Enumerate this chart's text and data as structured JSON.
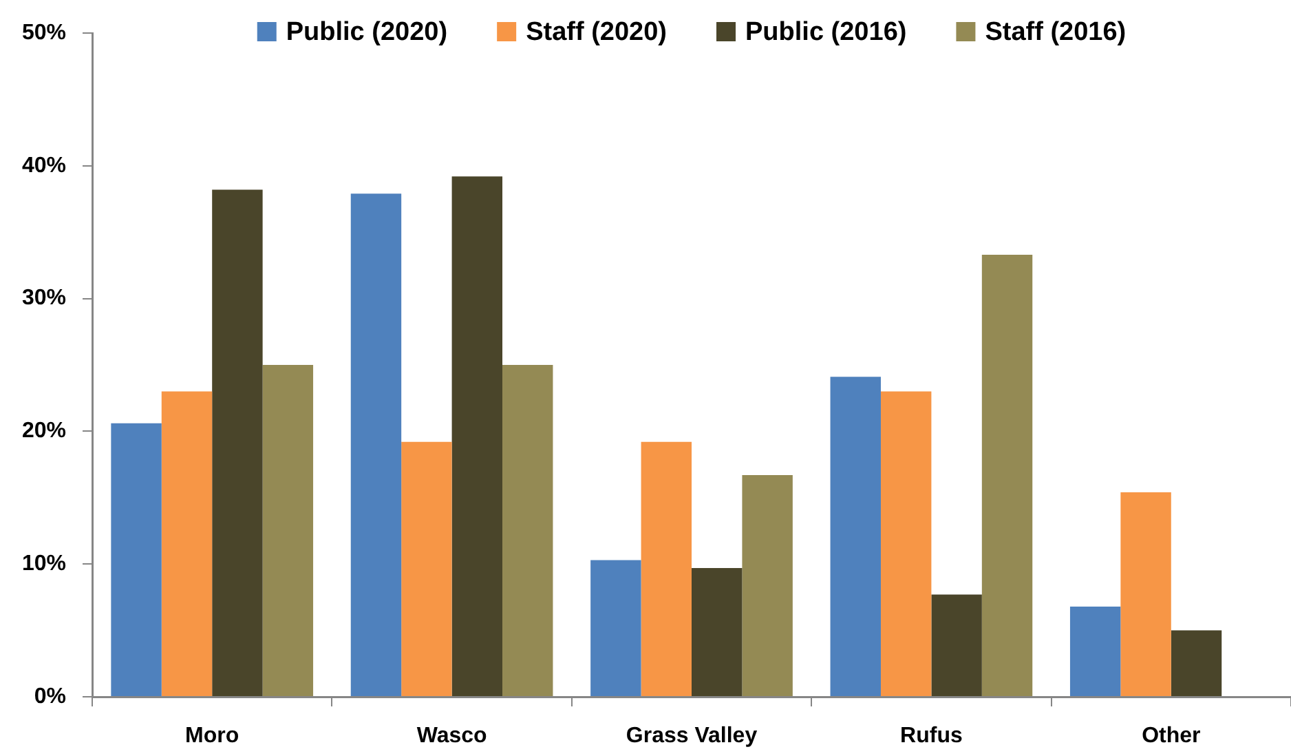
{
  "chart_data": {
    "type": "bar",
    "categories": [
      "Moro",
      "Wasco",
      "Grass Valley",
      "Rufus",
      "Other"
    ],
    "series": [
      {
        "name": "Public (2020)",
        "color": "#4f81bd",
        "values": [
          20.6,
          37.9,
          10.3,
          24.1,
          6.8
        ]
      },
      {
        "name": "Staff (2020)",
        "color": "#f79646",
        "values": [
          23.0,
          19.2,
          19.2,
          23.0,
          15.4
        ]
      },
      {
        "name": "Public (2016)",
        "color": "#4a452a",
        "values": [
          38.2,
          39.2,
          9.7,
          7.7,
          5.0
        ]
      },
      {
        "name": "Staff (2016)",
        "color": "#948a54",
        "values": [
          25.0,
          25.0,
          16.7,
          33.3,
          null
        ]
      }
    ],
    "ylim": [
      0,
      50
    ],
    "yticks": [
      {
        "value": 0,
        "label": "0%"
      },
      {
        "value": 10,
        "label": "10%"
      },
      {
        "value": 20,
        "label": "20%"
      },
      {
        "value": 30,
        "label": "30%"
      },
      {
        "value": 40,
        "label": "40%"
      },
      {
        "value": 50,
        "label": "50%"
      }
    ],
    "grid": false,
    "legend": "top"
  }
}
